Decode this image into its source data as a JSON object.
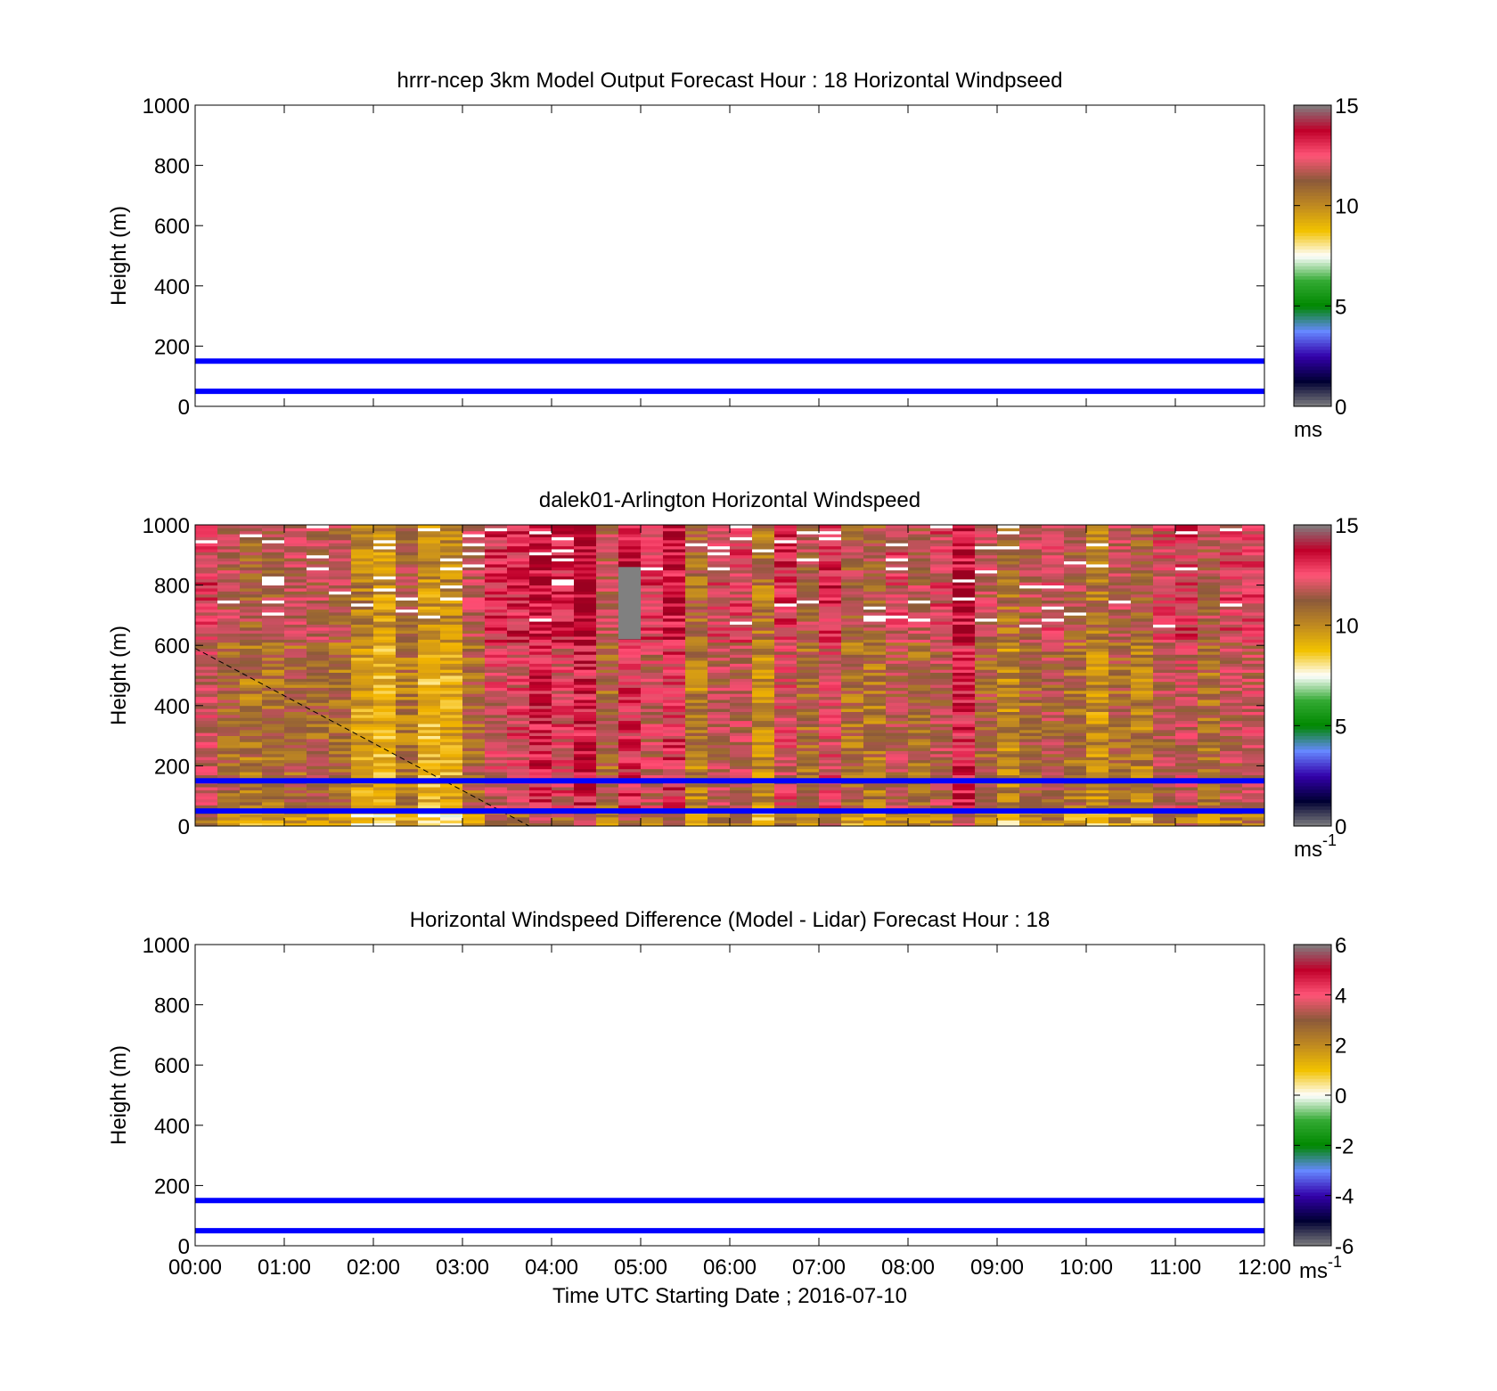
{
  "figure": {
    "xlabel": "Time UTC  Starting Date ; 2016-07-10",
    "x_ticks": [
      "00:00",
      "01:00",
      "02:00",
      "03:00",
      "04:00",
      "05:00",
      "06:00",
      "07:00",
      "08:00",
      "09:00",
      "10:00",
      "11:00",
      "12:00"
    ],
    "y_ticks": [
      0,
      200,
      400,
      600,
      800,
      1000
    ],
    "ylabel": "Height (m)"
  },
  "chart_data": [
    {
      "type": "heatmap",
      "title": "hrrr-ncep 3km Model Output   Forecast Hour : 18 Horizontal Windpseed",
      "ylabel": "Height (m)",
      "ylim": [
        0,
        1000
      ],
      "xlim": [
        "00:00",
        "12:00"
      ],
      "colorbar": {
        "ticks": [
          0,
          5,
          10,
          15
        ],
        "range": [
          0,
          15
        ],
        "unit": "ms",
        "unit_sup": ""
      },
      "reference_lines_m": [
        50,
        150
      ],
      "reference_line_color": "#0000ff",
      "cells": "none"
    },
    {
      "type": "heatmap",
      "title": "dalek01-Arlington  Horizontal Windspeed",
      "ylabel": "Height (m)",
      "ylim": [
        0,
        1000
      ],
      "xlim": [
        "00:00",
        "12:00"
      ],
      "colorbar": {
        "ticks": [
          0,
          5,
          10,
          15
        ],
        "range": [
          0,
          15
        ],
        "unit": "ms",
        "unit_sup": "-1"
      },
      "reference_lines_m": [
        50,
        150
      ],
      "reference_line_color": "#0000ff",
      "column_width_hours": 0.25,
      "column_mean_speed_ms": [
        12.5,
        11.5,
        11,
        11.2,
        11.5,
        11.6,
        11.2,
        9.9,
        9.3,
        11,
        9.3,
        9.6,
        11.5,
        12.8,
        13,
        13.8,
        13,
        14,
        11.5,
        13.5,
        12.5,
        13.6,
        10.7,
        12.2,
        12.3,
        10.2,
        12.8,
        11.3,
        13,
        11.2,
        11,
        12.1,
        11.5,
        12.2,
        13.8,
        11.6,
        10.4,
        11.5,
        12,
        11.2,
        10.2,
        11.5,
        10.8,
        12.1,
        12.6,
        11.3,
        12.3,
        12.4
      ],
      "data_region_top_m": 1000,
      "missing_value_block": {
        "x_start": "04:45",
        "x_end": "05:00",
        "height_m": [
          620,
          860
        ],
        "color": "#808080"
      },
      "annotation_line": {
        "from": [
          "00:00",
          590
        ],
        "to": [
          "03:45",
          0
        ],
        "style": "dashed"
      }
    },
    {
      "type": "heatmap",
      "title": "Horizontal Windspeed Difference (Model - Lidar) Forecast Hour : 18",
      "ylabel": "Height (m)",
      "ylim": [
        0,
        1000
      ],
      "xlim": [
        "00:00",
        "12:00"
      ],
      "colorbar": {
        "ticks": [
          -6,
          -4,
          -2,
          0,
          2,
          4,
          6
        ],
        "range": [
          -6,
          6
        ],
        "unit": "ms",
        "unit_sup": "-1"
      },
      "reference_lines_m": [
        50,
        150
      ],
      "reference_line_color": "#0000ff",
      "cells": "none"
    }
  ],
  "colormap": {
    "stops": [
      "#808080",
      "#000033",
      "#3300aa",
      "#6688ff",
      "#008800",
      "#33aa33",
      "#ffffff",
      "#f2c200",
      "#c08a20",
      "#8c5a3a",
      "#ff5577",
      "#c0002a",
      "#808080"
    ]
  }
}
